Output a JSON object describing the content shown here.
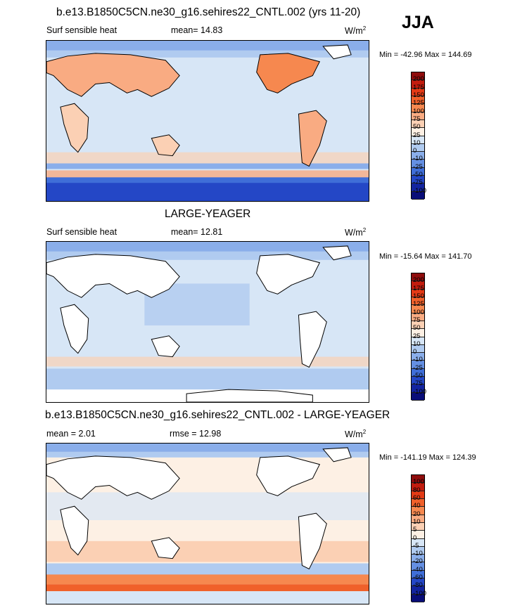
{
  "season": "JJA",
  "panels": [
    {
      "title": "b.e13.B1850C5CN.ne30_g16.sehires22_CNTL.002 (yrs 11-20)",
      "left_label": "Surf sensible heat",
      "center_label": "mean=  14.83",
      "units": "W/m",
      "units_sup": "2",
      "minmax": "Min = -42.96 Max = 144.69",
      "colorbar_labels": [
        "200",
        "175",
        "150",
        "125",
        "100",
        "75",
        "50",
        "25",
        "10",
        "0",
        "-10",
        "-25",
        "-50",
        "-75",
        "-100"
      ],
      "colorbar_colors": [
        "#8f0c0c",
        "#c21c0e",
        "#e33a15",
        "#f0602a",
        "#f6884f",
        "#f9ab82",
        "#fbd0b4",
        "#fdf0e4",
        "#d7e6f6",
        "#b0cbf0",
        "#8aaeea",
        "#648fe2",
        "#3f6ed8",
        "#2447c6",
        "#13249f",
        "#090d78"
      ]
    },
    {
      "title": "LARGE-YEAGER",
      "left_label": "Surf sensible heat",
      "center_label": "mean=  12.81",
      "units": "W/m",
      "units_sup": "2",
      "minmax": "Min = -15.64 Max = 141.70",
      "colorbar_labels": [
        "200",
        "175",
        "150",
        "125",
        "100",
        "75",
        "50",
        "25",
        "10",
        "0",
        "-10",
        "-25",
        "-50",
        "-75",
        "-100"
      ],
      "colorbar_colors": [
        "#8f0c0c",
        "#c21c0e",
        "#e33a15",
        "#f0602a",
        "#f6884f",
        "#f9ab82",
        "#fbd0b4",
        "#fdf0e4",
        "#d7e6f6",
        "#b0cbf0",
        "#8aaeea",
        "#648fe2",
        "#3f6ed8",
        "#2447c6",
        "#13249f",
        "#090d78"
      ]
    },
    {
      "title": "b.e13.B1850C5CN.ne30_g16.sehires22_CNTL.002 - LARGE-YEAGER",
      "left_label": "mean =  2.01",
      "center_label": "rmse =  12.98",
      "units": "W/m",
      "units_sup": "2",
      "minmax": "Min = -141.19 Max = 124.39",
      "colorbar_labels": [
        "100",
        "80",
        "60",
        "40",
        "20",
        "10",
        "5",
        "0",
        "-5",
        "-10",
        "-20",
        "-40",
        "-60",
        "-80",
        "-100"
      ],
      "colorbar_colors": [
        "#8f0c0c",
        "#c21c0e",
        "#e33a15",
        "#f0602a",
        "#f6884f",
        "#f9ab82",
        "#fbd0b4",
        "#fdf0e4",
        "#d7e6f6",
        "#b0cbf0",
        "#8aaeea",
        "#648fe2",
        "#3f6ed8",
        "#2447c6",
        "#13249f",
        "#090d78"
      ]
    }
  ]
}
